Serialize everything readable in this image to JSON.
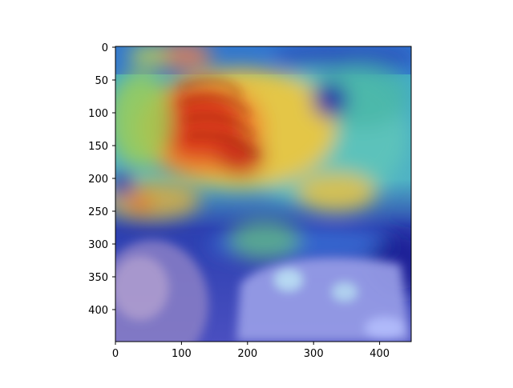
{
  "figure": {
    "image_description_name": "bird-saliency-heatmap-image",
    "x_ticks": [
      "0",
      "100",
      "200",
      "300",
      "400"
    ],
    "y_ticks": [
      "0",
      "50",
      "100",
      "150",
      "200",
      "250",
      "300",
      "350",
      "400"
    ],
    "x_range": [
      0,
      448
    ],
    "y_range": [
      0,
      448
    ],
    "colormap": "jet",
    "colors": {
      "background": "#ffffff",
      "axis": "#000000",
      "hot": "#d7301f",
      "warm": "#f6c33a",
      "cool": "#3fb8c9",
      "cold": "#2b2fb0"
    }
  }
}
